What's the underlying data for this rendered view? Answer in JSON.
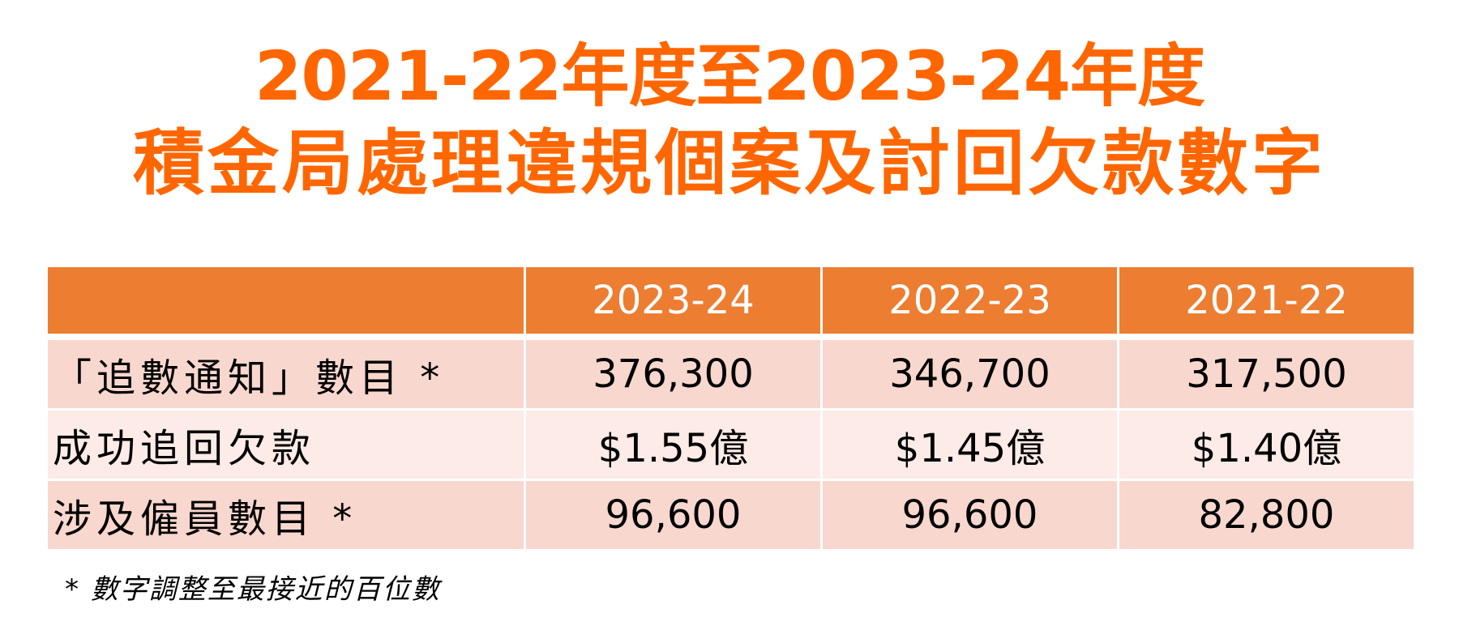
{
  "title": {
    "line1": "2021-22年度至2023-24年度",
    "line2": "積金局處理違規個案及討回欠款數字"
  },
  "table": {
    "headers": [
      "",
      "2023-24",
      "2022-23",
      "2021-22"
    ],
    "rows": [
      {
        "label": "「追數通知」數目 *",
        "values": [
          "376,300",
          "346,700",
          "317,500"
        ]
      },
      {
        "label": "成功追回欠款",
        "values": [
          "$1.55億",
          "$1.45億",
          "$1.40億"
        ]
      },
      {
        "label": "涉及僱員數目 *",
        "values": [
          "96,600",
          "96,600",
          "82,800"
        ]
      }
    ]
  },
  "footnote": "* 數字調整至最接近的百位數",
  "colors": {
    "title": "#ff6600",
    "header_bg": "#ed7d31",
    "row_dark": "#f8d7ce",
    "row_light": "#fcebe7"
  }
}
